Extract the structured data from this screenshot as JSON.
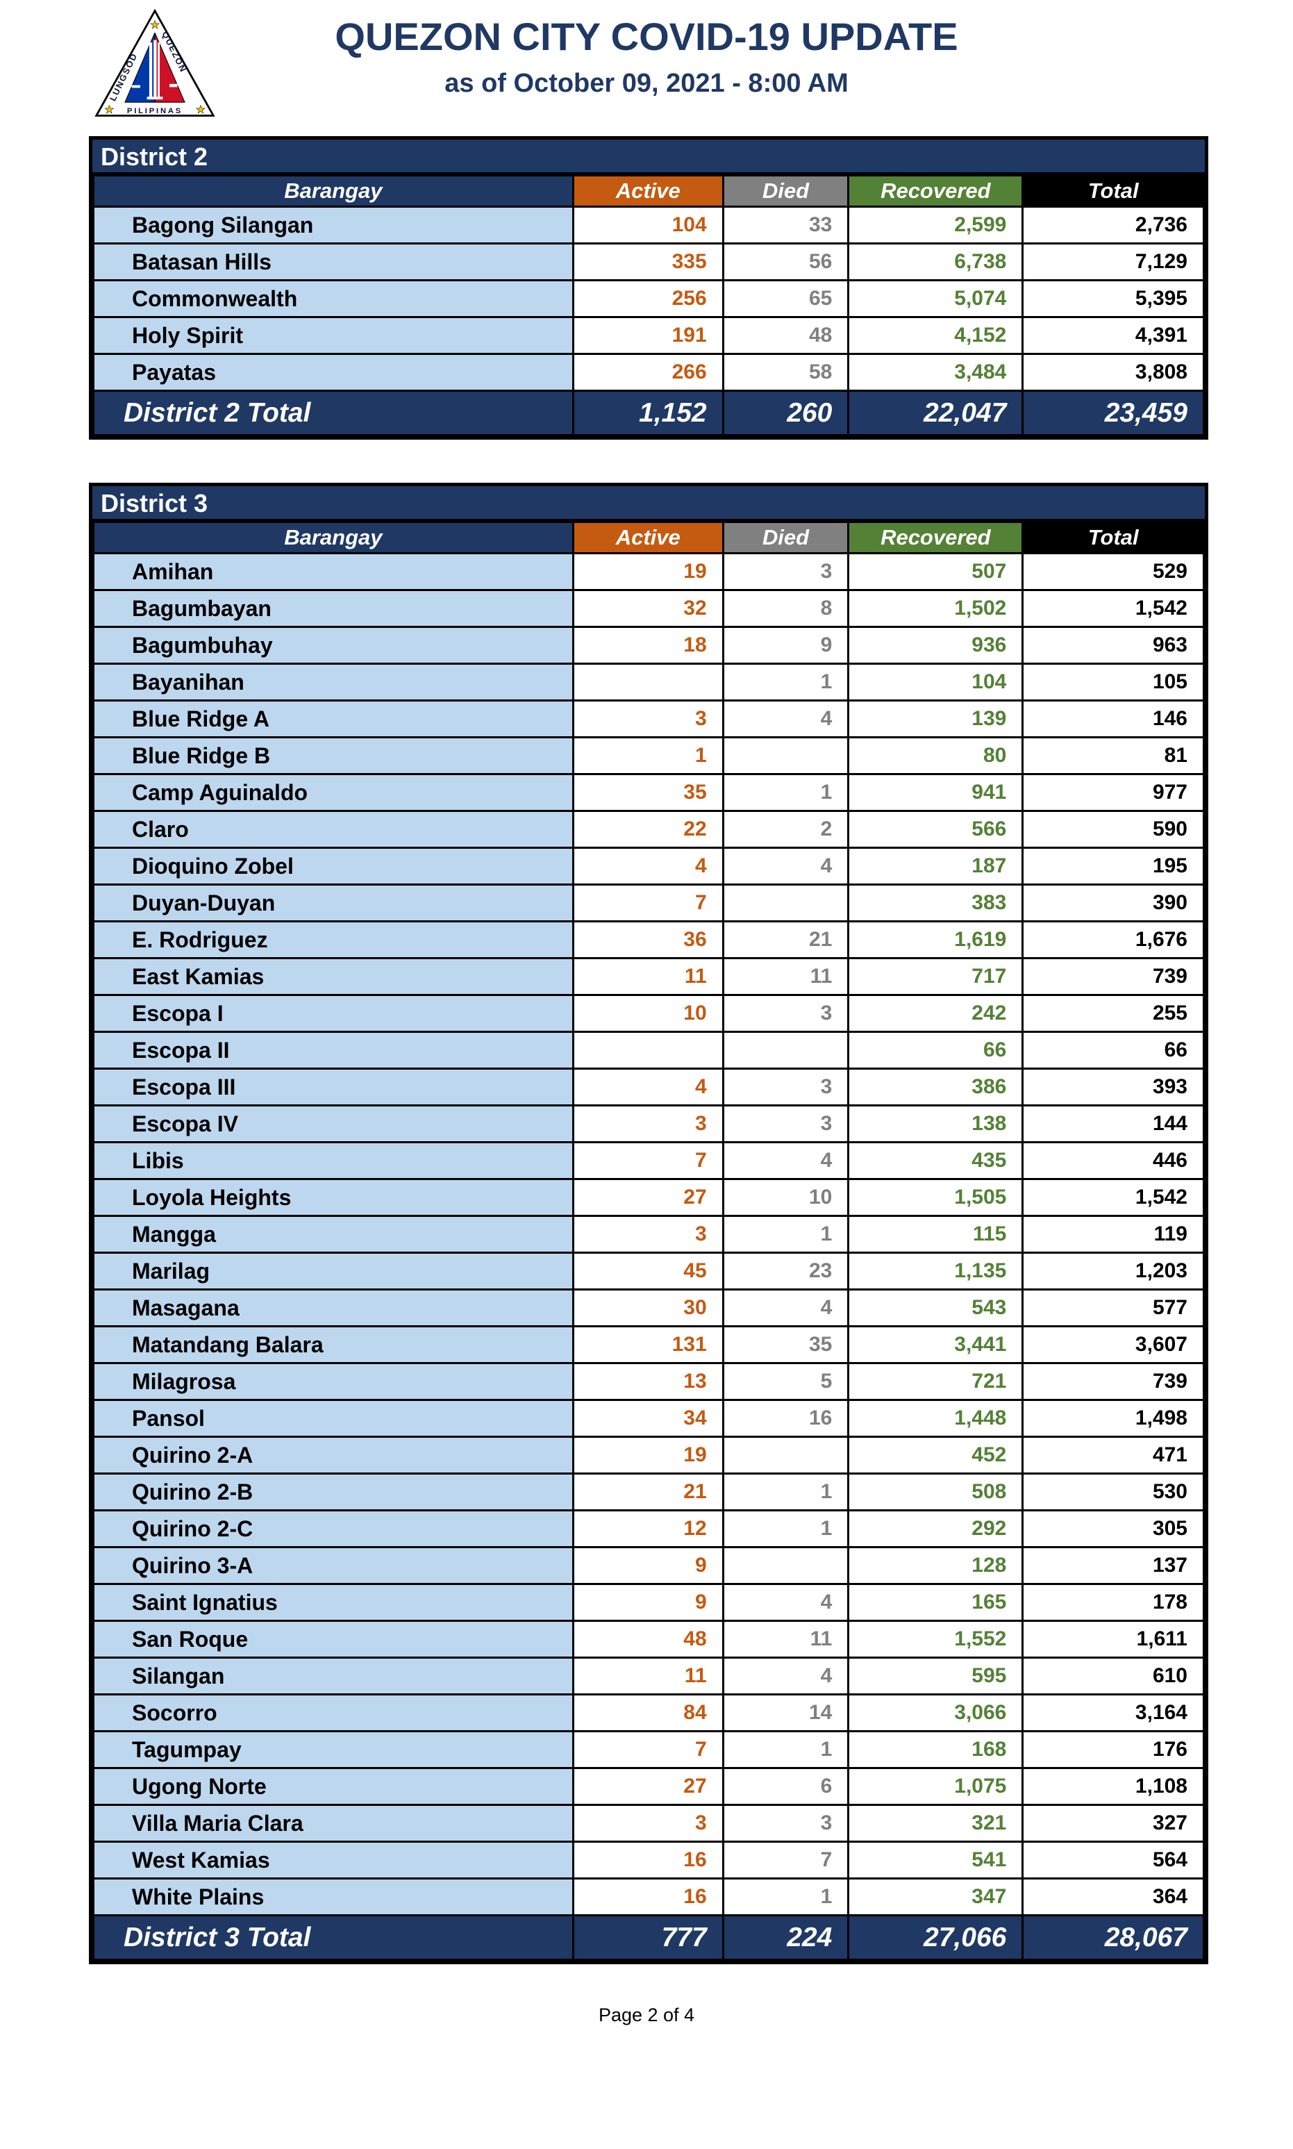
{
  "header": {
    "title": "QUEZON CITY COVID-19 UPDATE",
    "subtitle": "as of October 09, 2021 - 8:00 AM",
    "logo": {
      "icon": "quezon-city-seal",
      "text_left": "LUNGSOD",
      "text_right": "QUEZON",
      "text_bottom": "PILIPINAS"
    }
  },
  "colors": {
    "navy": "#1F3864",
    "light_blue": "#BDD7EE",
    "active_orange": "#C55A11",
    "died_gray": "#808080",
    "recovered_green": "#538135",
    "total_black": "#000000",
    "title_blue": "#1F3864",
    "seal_blue": "#0038A8",
    "seal_red": "#CE1126",
    "seal_star_gold": "#F2C500"
  },
  "columns": [
    {
      "key": "name",
      "label": "Barangay"
    },
    {
      "key": "active",
      "label": "Active"
    },
    {
      "key": "died",
      "label": "Died"
    },
    {
      "key": "recovered",
      "label": "Recovered"
    },
    {
      "key": "total",
      "label": "Total"
    }
  ],
  "tables": [
    {
      "district": "District 2",
      "total_label": "District 2 Total",
      "totals": {
        "active": "1,152",
        "died": "260",
        "recovered": "22,047",
        "total": "23,459"
      },
      "rows": [
        {
          "name": "Bagong Silangan",
          "active": "104",
          "died": "33",
          "recovered": "2,599",
          "total": "2,736"
        },
        {
          "name": "Batasan Hills",
          "active": "335",
          "died": "56",
          "recovered": "6,738",
          "total": "7,129"
        },
        {
          "name": "Commonwealth",
          "active": "256",
          "died": "65",
          "recovered": "5,074",
          "total": "5,395"
        },
        {
          "name": "Holy Spirit",
          "active": "191",
          "died": "48",
          "recovered": "4,152",
          "total": "4,391"
        },
        {
          "name": "Payatas",
          "active": "266",
          "died": "58",
          "recovered": "3,484",
          "total": "3,808"
        }
      ]
    },
    {
      "district": "District 3",
      "total_label": "District 3 Total",
      "totals": {
        "active": "777",
        "died": "224",
        "recovered": "27,066",
        "total": "28,067"
      },
      "rows": [
        {
          "name": "Amihan",
          "active": "19",
          "died": "3",
          "recovered": "507",
          "total": "529"
        },
        {
          "name": "Bagumbayan",
          "active": "32",
          "died": "8",
          "recovered": "1,502",
          "total": "1,542"
        },
        {
          "name": "Bagumbuhay",
          "active": "18",
          "died": "9",
          "recovered": "936",
          "total": "963"
        },
        {
          "name": "Bayanihan",
          "active": "",
          "died": "1",
          "recovered": "104",
          "total": "105"
        },
        {
          "name": "Blue Ridge A",
          "active": "3",
          "died": "4",
          "recovered": "139",
          "total": "146"
        },
        {
          "name": "Blue Ridge B",
          "active": "1",
          "died": "",
          "recovered": "80",
          "total": "81"
        },
        {
          "name": "Camp Aguinaldo",
          "active": "35",
          "died": "1",
          "recovered": "941",
          "total": "977"
        },
        {
          "name": "Claro",
          "active": "22",
          "died": "2",
          "recovered": "566",
          "total": "590"
        },
        {
          "name": "Dioquino Zobel",
          "active": "4",
          "died": "4",
          "recovered": "187",
          "total": "195"
        },
        {
          "name": "Duyan-Duyan",
          "active": "7",
          "died": "",
          "recovered": "383",
          "total": "390"
        },
        {
          "name": "E. Rodriguez",
          "active": "36",
          "died": "21",
          "recovered": "1,619",
          "total": "1,676"
        },
        {
          "name": "East Kamias",
          "active": "11",
          "died": "11",
          "recovered": "717",
          "total": "739"
        },
        {
          "name": "Escopa I",
          "active": "10",
          "died": "3",
          "recovered": "242",
          "total": "255"
        },
        {
          "name": "Escopa II",
          "active": "",
          "died": "",
          "recovered": "66",
          "total": "66"
        },
        {
          "name": "Escopa III",
          "active": "4",
          "died": "3",
          "recovered": "386",
          "total": "393"
        },
        {
          "name": "Escopa IV",
          "active": "3",
          "died": "3",
          "recovered": "138",
          "total": "144"
        },
        {
          "name": "Libis",
          "active": "7",
          "died": "4",
          "recovered": "435",
          "total": "446"
        },
        {
          "name": "Loyola Heights",
          "active": "27",
          "died": "10",
          "recovered": "1,505",
          "total": "1,542"
        },
        {
          "name": "Mangga",
          "active": "3",
          "died": "1",
          "recovered": "115",
          "total": "119"
        },
        {
          "name": "Marilag",
          "active": "45",
          "died": "23",
          "recovered": "1,135",
          "total": "1,203"
        },
        {
          "name": "Masagana",
          "active": "30",
          "died": "4",
          "recovered": "543",
          "total": "577"
        },
        {
          "name": "Matandang Balara",
          "active": "131",
          "died": "35",
          "recovered": "3,441",
          "total": "3,607"
        },
        {
          "name": "Milagrosa",
          "active": "13",
          "died": "5",
          "recovered": "721",
          "total": "739"
        },
        {
          "name": "Pansol",
          "active": "34",
          "died": "16",
          "recovered": "1,448",
          "total": "1,498"
        },
        {
          "name": "Quirino 2-A",
          "active": "19",
          "died": "",
          "recovered": "452",
          "total": "471"
        },
        {
          "name": "Quirino 2-B",
          "active": "21",
          "died": "1",
          "recovered": "508",
          "total": "530"
        },
        {
          "name": "Quirino 2-C",
          "active": "12",
          "died": "1",
          "recovered": "292",
          "total": "305"
        },
        {
          "name": "Quirino 3-A",
          "active": "9",
          "died": "",
          "recovered": "128",
          "total": "137"
        },
        {
          "name": "Saint Ignatius",
          "active": "9",
          "died": "4",
          "recovered": "165",
          "total": "178"
        },
        {
          "name": "San Roque",
          "active": "48",
          "died": "11",
          "recovered": "1,552",
          "total": "1,611"
        },
        {
          "name": "Silangan",
          "active": "11",
          "died": "4",
          "recovered": "595",
          "total": "610"
        },
        {
          "name": "Socorro",
          "active": "84",
          "died": "14",
          "recovered": "3,066",
          "total": "3,164"
        },
        {
          "name": "Tagumpay",
          "active": "7",
          "died": "1",
          "recovered": "168",
          "total": "176"
        },
        {
          "name": "Ugong Norte",
          "active": "27",
          "died": "6",
          "recovered": "1,075",
          "total": "1,108"
        },
        {
          "name": "Villa Maria Clara",
          "active": "3",
          "died": "3",
          "recovered": "321",
          "total": "327"
        },
        {
          "name": "West Kamias",
          "active": "16",
          "died": "7",
          "recovered": "541",
          "total": "564"
        },
        {
          "name": "White Plains",
          "active": "16",
          "died": "1",
          "recovered": "347",
          "total": "364"
        }
      ]
    }
  ],
  "footer": {
    "page_label": "Page 2 of 4"
  }
}
